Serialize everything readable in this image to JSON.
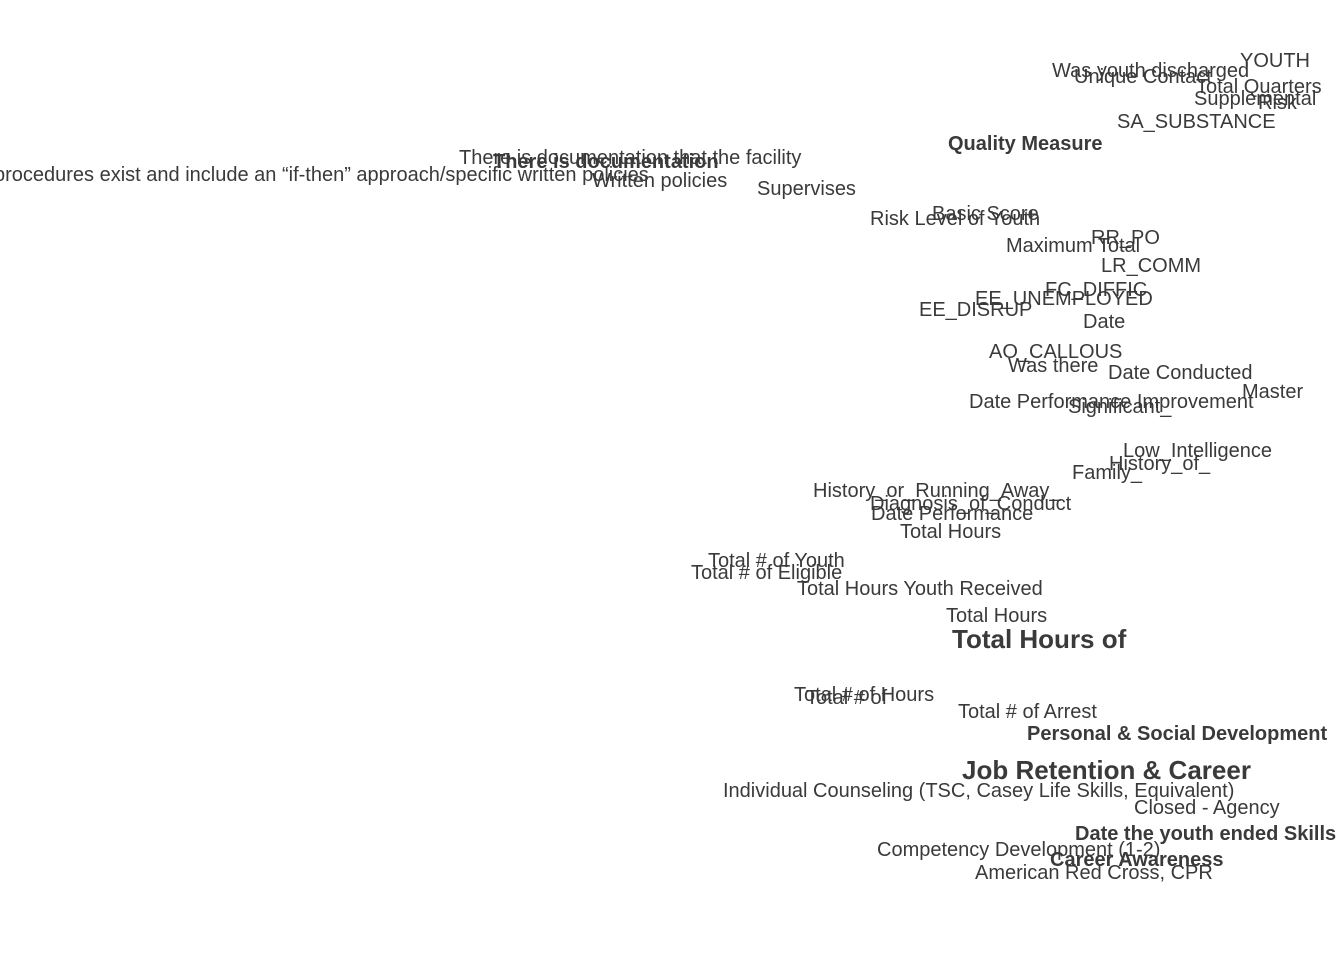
{
  "colors": {
    "background": "#ffffff",
    "text": "#3a3a3a"
  },
  "labels": [
    {
      "text": "YOUTH"
    },
    {
      "text": "Was youth discharged"
    },
    {
      "text": "Unique Contact"
    },
    {
      "text": "Total Quarters"
    },
    {
      "text": "Supplemental"
    },
    {
      "text": "Risk"
    },
    {
      "text": "SA_SUBSTANCE"
    },
    {
      "text": "Quality Measure"
    },
    {
      "text": "There is documentation that the facility"
    },
    {
      "text": "There is documentation"
    },
    {
      "text": "procedures exist and include an “if-then” approach/specific written policies"
    },
    {
      "text": "Written policies"
    },
    {
      "text": "Supervises"
    },
    {
      "text": "Risk Level of Youth"
    },
    {
      "text": "Basic Score"
    },
    {
      "text": "RR_PO"
    },
    {
      "text": "Maximum Total"
    },
    {
      "text": "LR_COMM"
    },
    {
      "text": "FC_DIFFIC"
    },
    {
      "text": "EE_UNEMPLOYED"
    },
    {
      "text": "EE_DISRUP"
    },
    {
      "text": "Date"
    },
    {
      "text": "AO_CALLOUS"
    },
    {
      "text": "Was there"
    },
    {
      "text": "Date Conducted"
    },
    {
      "text": "Master"
    },
    {
      "text": "Date Performance Improvement"
    },
    {
      "text": "Significant_"
    },
    {
      "text": "Low_Intelligence"
    },
    {
      "text": "History_of_"
    },
    {
      "text": "Family_"
    },
    {
      "text": "History_or_Running_Away_"
    },
    {
      "text": "Diagnosis_of_Conduct"
    },
    {
      "text": "Date Performance"
    },
    {
      "text": "Total Hours"
    },
    {
      "text": "Total # of Youth"
    },
    {
      "text": "Total # of Eligible"
    },
    {
      "text": "Total Hours Youth Received"
    },
    {
      "text": "Total Hours"
    },
    {
      "text": "Total Hours of"
    },
    {
      "text": "Total # of Hours"
    },
    {
      "text": "Total # of"
    },
    {
      "text": "Total # of Arrest"
    },
    {
      "text": "Personal & Social Development"
    },
    {
      "text": "Job Retention & Career"
    },
    {
      "text": "Individual Counseling (TSC, Casey Life Skills, Equivalent)"
    },
    {
      "text": "Closed - Agency"
    },
    {
      "text": "Date the youth ended Skills"
    },
    {
      "text": "Competency Development (1-2)"
    },
    {
      "text": "Career Awareness"
    },
    {
      "text": "American Red Cross, CPR"
    }
  ]
}
